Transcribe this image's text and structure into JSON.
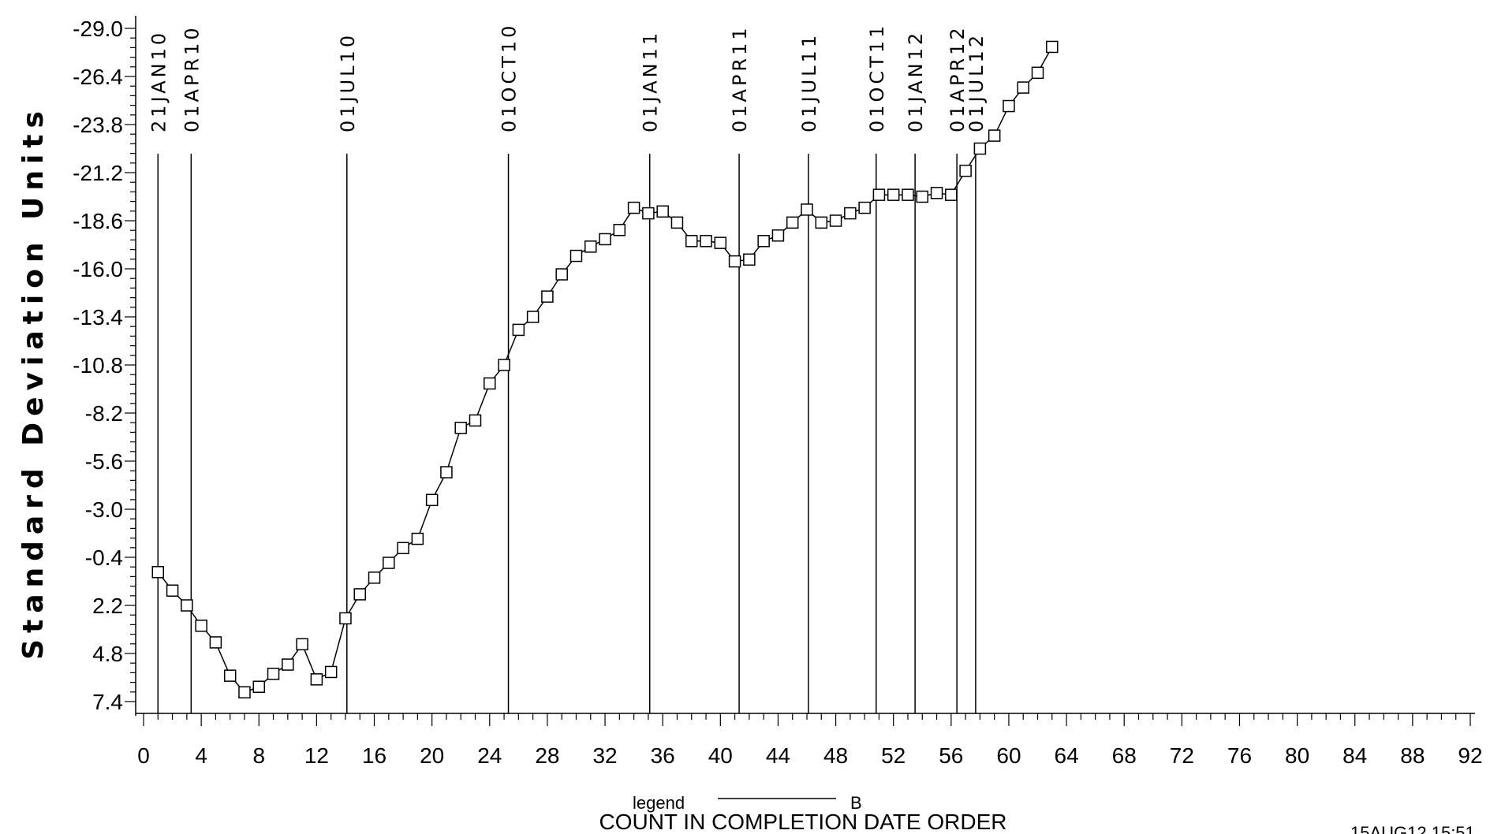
{
  "chart_data": {
    "type": "line",
    "title": "",
    "xlabel": "COUNT IN COMPLETION DATE ORDER",
    "ylabel": "Standard Deviation Units",
    "y_axis_reversed": true,
    "xlim": [
      0,
      92
    ],
    "ylim": [
      7.4,
      -29.0
    ],
    "x_ticks": [
      "0",
      "4",
      "8",
      "12",
      "16",
      "20",
      "24",
      "28",
      "32",
      "36",
      "40",
      "44",
      "48",
      "52",
      "56",
      "60",
      "64",
      "68",
      "72",
      "76",
      "80",
      "84",
      "88",
      "92"
    ],
    "y_ticks": [
      "-29.0",
      "-26.4",
      "-23.8",
      "-21.2",
      "-18.6",
      "-16.0",
      "-13.4",
      "-10.8",
      "-8.2",
      "-5.6",
      "-3.0",
      "-0.4",
      "2.2",
      "4.8",
      "7.4"
    ],
    "legend": {
      "label": "legend",
      "series_label": "B"
    },
    "timestamp": "15AUG12 15:51",
    "grid": false,
    "marker": "square",
    "date_markers": [
      {
        "label": "21JAN10",
        "x": 1
      },
      {
        "label": "01APR10",
        "x": 3.3
      },
      {
        "label": "01JUL10",
        "x": 14.1
      },
      {
        "label": "01OCT10",
        "x": 25.3
      },
      {
        "label": "01JAN11",
        "x": 35.1
      },
      {
        "label": "01APR11",
        "x": 41.3
      },
      {
        "label": "01JUL11",
        "x": 46.1
      },
      {
        "label": "01OCT11",
        "x": 50.8
      },
      {
        "label": "01JAN12",
        "x": 53.5
      },
      {
        "label": "01APR12",
        "x": 56.4
      },
      {
        "label": "01JUL12",
        "x": 57.7
      }
    ],
    "series": [
      {
        "name": "B",
        "x": [
          1,
          2,
          3,
          4,
          5,
          6,
          7,
          8,
          9,
          10,
          11,
          12,
          13,
          14,
          15,
          16,
          17,
          18,
          19,
          20,
          21,
          22,
          23,
          24,
          25,
          26,
          27,
          28,
          29,
          30,
          31,
          32,
          33,
          34,
          35,
          36,
          37,
          38,
          39,
          40,
          41,
          42,
          43,
          44,
          45,
          46,
          47,
          48,
          49,
          50,
          51,
          52,
          53,
          54,
          55,
          56,
          57,
          58,
          59,
          60,
          61,
          62,
          63
        ],
        "values": [
          0.4,
          1.4,
          2.2,
          3.3,
          4.2,
          6.0,
          6.9,
          6.6,
          5.9,
          5.4,
          4.3,
          6.2,
          5.8,
          2.9,
          1.6,
          0.7,
          -0.1,
          -0.9,
          -1.4,
          -3.5,
          -5.0,
          -7.4,
          -7.8,
          -9.8,
          -10.8,
          -12.7,
          -13.4,
          -14.5,
          -15.7,
          -16.7,
          -17.2,
          -17.6,
          -18.1,
          -19.3,
          -19.0,
          -19.1,
          -18.5,
          -17.5,
          -17.5,
          -17.4,
          -16.4,
          -16.5,
          -17.5,
          -17.8,
          -18.5,
          -19.2,
          -18.5,
          -18.6,
          -19.0,
          -19.3,
          -20.0,
          -20.0,
          -20.0,
          -19.9,
          -20.1,
          -20.0,
          -21.3,
          -22.5,
          -23.2,
          -24.8,
          -25.8,
          -26.6,
          -28.0
        ]
      }
    ]
  }
}
